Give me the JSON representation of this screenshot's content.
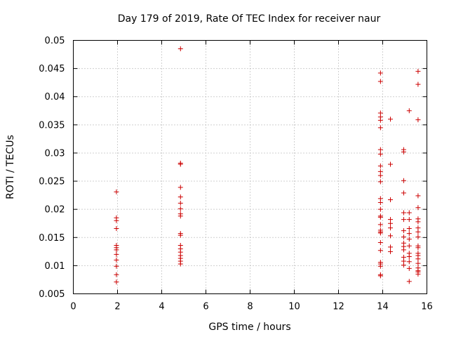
{
  "chart_data": {
    "type": "scatter",
    "title": "Day 179 of 2019, Rate Of TEC Index for receiver naur",
    "xlabel": "GPS time / hours",
    "ylabel": "ROTI / TECUs",
    "xlim": [
      0,
      16
    ],
    "ylim": [
      0.005,
      0.05
    ],
    "xticks": [
      0,
      2,
      4,
      6,
      8,
      10,
      12,
      14,
      16
    ],
    "yticks": [
      0.005,
      0.01,
      0.015,
      0.02,
      0.025,
      0.03,
      0.035,
      0.04,
      0.045,
      0.05
    ],
    "xtick_labels": [
      "0",
      "2",
      "4",
      "6",
      "8",
      "10",
      "12",
      "14",
      "16"
    ],
    "ytick_labels": [
      "0.005",
      "0.01",
      "0.015",
      "0.02",
      "0.025",
      "0.03",
      "0.035",
      "0.04",
      "0.045",
      "0.05"
    ],
    "grid": true,
    "marker": "+",
    "color": "#cc0000",
    "series": [
      {
        "name": "ROTI",
        "points": [
          [
            1.95,
            0.0231
          ],
          [
            1.95,
            0.0185
          ],
          [
            1.95,
            0.018
          ],
          [
            1.95,
            0.0166
          ],
          [
            1.95,
            0.0136
          ],
          [
            1.95,
            0.0132
          ],
          [
            1.95,
            0.0128
          ],
          [
            1.95,
            0.012
          ],
          [
            1.95,
            0.011
          ],
          [
            1.95,
            0.0099
          ],
          [
            1.95,
            0.0084
          ],
          [
            1.95,
            0.0071
          ],
          [
            4.85,
            0.0485
          ],
          [
            4.85,
            0.0282
          ],
          [
            4.85,
            0.028
          ],
          [
            4.85,
            0.0239
          ],
          [
            4.85,
            0.0222
          ],
          [
            4.85,
            0.0211
          ],
          [
            4.85,
            0.0201
          ],
          [
            4.85,
            0.0192
          ],
          [
            4.85,
            0.0188
          ],
          [
            4.85,
            0.0157
          ],
          [
            4.85,
            0.0154
          ],
          [
            4.85,
            0.0136
          ],
          [
            4.85,
            0.013
          ],
          [
            4.85,
            0.0124
          ],
          [
            4.85,
            0.0118
          ],
          [
            4.85,
            0.0113
          ],
          [
            4.85,
            0.0108
          ],
          [
            4.85,
            0.0103
          ],
          [
            13.9,
            0.0442
          ],
          [
            13.9,
            0.0427
          ],
          [
            13.9,
            0.0371
          ],
          [
            13.9,
            0.0364
          ],
          [
            13.9,
            0.0358
          ],
          [
            13.9,
            0.0345
          ],
          [
            13.9,
            0.0306
          ],
          [
            13.9,
            0.0298
          ],
          [
            13.9,
            0.0277
          ],
          [
            13.9,
            0.0267
          ],
          [
            13.9,
            0.026
          ],
          [
            13.9,
            0.0249
          ],
          [
            13.9,
            0.0219
          ],
          [
            13.9,
            0.0212
          ],
          [
            13.9,
            0.02
          ],
          [
            13.9,
            0.0188
          ],
          [
            13.9,
            0.0186
          ],
          [
            13.9,
            0.0173
          ],
          [
            13.9,
            0.0163
          ],
          [
            13.9,
            0.016
          ],
          [
            13.9,
            0.0158
          ],
          [
            13.9,
            0.0141
          ],
          [
            13.9,
            0.0127
          ],
          [
            13.9,
            0.0106
          ],
          [
            13.9,
            0.0103
          ],
          [
            13.9,
            0.0099
          ],
          [
            13.9,
            0.0084
          ],
          [
            13.9,
            0.0082
          ],
          [
            14.35,
            0.036
          ],
          [
            14.35,
            0.028
          ],
          [
            14.35,
            0.0217
          ],
          [
            14.35,
            0.0182
          ],
          [
            14.35,
            0.0175
          ],
          [
            14.35,
            0.0167
          ],
          [
            14.35,
            0.0153
          ],
          [
            14.35,
            0.0133
          ],
          [
            14.35,
            0.0125
          ],
          [
            14.95,
            0.0306
          ],
          [
            14.95,
            0.0302
          ],
          [
            14.95,
            0.0251
          ],
          [
            14.95,
            0.0229
          ],
          [
            14.95,
            0.0194
          ],
          [
            14.95,
            0.0182
          ],
          [
            14.95,
            0.0162
          ],
          [
            14.95,
            0.0151
          ],
          [
            14.95,
            0.014
          ],
          [
            14.95,
            0.0134
          ],
          [
            14.95,
            0.0128
          ],
          [
            14.95,
            0.0115
          ],
          [
            14.95,
            0.0108
          ],
          [
            14.95,
            0.0101
          ],
          [
            15.2,
            0.0375
          ],
          [
            15.2,
            0.0194
          ],
          [
            15.2,
            0.0182
          ],
          [
            15.2,
            0.0166
          ],
          [
            15.2,
            0.0157
          ],
          [
            15.2,
            0.0147
          ],
          [
            15.2,
            0.0135
          ],
          [
            15.2,
            0.0122
          ],
          [
            15.2,
            0.0116
          ],
          [
            15.2,
            0.0107
          ],
          [
            15.2,
            0.0095
          ],
          [
            15.2,
            0.0072
          ],
          [
            15.6,
            0.0445
          ],
          [
            15.6,
            0.0422
          ],
          [
            15.6,
            0.0359
          ],
          [
            15.6,
            0.0224
          ],
          [
            15.6,
            0.0203
          ],
          [
            15.6,
            0.0183
          ],
          [
            15.6,
            0.0178
          ],
          [
            15.6,
            0.0167
          ],
          [
            15.6,
            0.016
          ],
          [
            15.6,
            0.0151
          ],
          [
            15.6,
            0.0135
          ],
          [
            15.6,
            0.0132
          ],
          [
            15.6,
            0.0122
          ],
          [
            15.6,
            0.0118
          ],
          [
            15.6,
            0.0112
          ],
          [
            15.6,
            0.0104
          ],
          [
            15.6,
            0.0096
          ],
          [
            15.6,
            0.0091
          ],
          [
            15.6,
            0.0089
          ],
          [
            15.6,
            0.0085
          ]
        ]
      }
    ]
  }
}
